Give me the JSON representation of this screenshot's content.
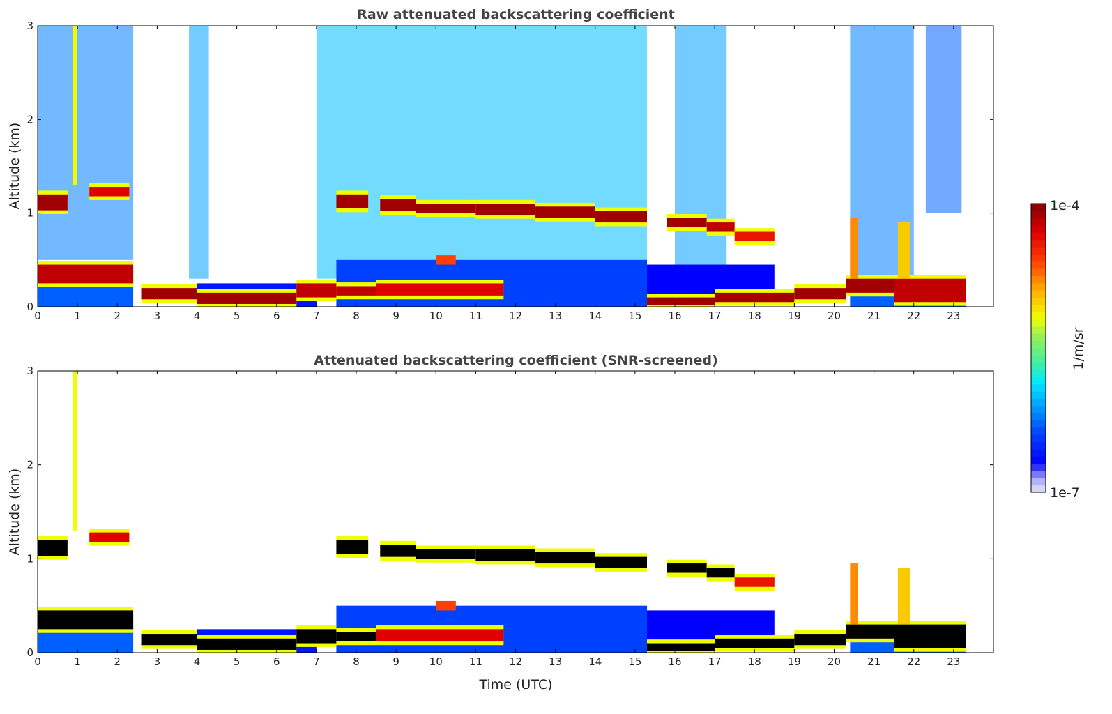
{
  "chart_data": [
    {
      "type": "heatmap",
      "id": "raw",
      "title": "Raw attenuated backscattering coefficient",
      "xlabel": "",
      "ylabel": "Altitude (km)",
      "xlim": [
        0,
        24
      ],
      "ylim": [
        0,
        3
      ],
      "xticks": [
        "0",
        "1",
        "2",
        "3",
        "4",
        "5",
        "6",
        "7",
        "8",
        "9",
        "10",
        "11",
        "12",
        "13",
        "14",
        "15",
        "16",
        "17",
        "18",
        "19",
        "20",
        "21",
        "22",
        "23"
      ],
      "yticks": [
        "0",
        "1",
        "2",
        "3"
      ],
      "show_low_snr": true
    },
    {
      "type": "heatmap",
      "id": "screened",
      "title": "Attenuated backscattering coefficient (SNR-screened)",
      "xlabel": "Time (UTC)",
      "ylabel": "Altitude (km)",
      "xlim": [
        0,
        24
      ],
      "ylim": [
        0,
        3
      ],
      "xticks": [
        "0",
        "1",
        "2",
        "3",
        "4",
        "5",
        "6",
        "7",
        "8",
        "9",
        "10",
        "11",
        "12",
        "13",
        "14",
        "15",
        "16",
        "17",
        "18",
        "19",
        "20",
        "21",
        "22",
        "23"
      ],
      "yticks": [
        "0",
        "1",
        "2",
        "3"
      ],
      "show_low_snr": false
    }
  ],
  "colorbar": {
    "label": "1/m/sr",
    "max_label": "1e-4",
    "min_label": "1e-7",
    "log_min": -7,
    "log_max": -4
  },
  "cells": [
    [
      0,
      2.4,
      0.5,
      3,
      -6.2,
      false
    ],
    [
      3.8,
      4.3,
      0.3,
      3,
      -6.1,
      false
    ],
    [
      7,
      15.3,
      0.3,
      3,
      -6.0,
      false
    ],
    [
      16,
      17.3,
      0.3,
      3,
      -6.1,
      false
    ],
    [
      20.4,
      22,
      0.3,
      3,
      -6.2,
      false
    ],
    [
      22.3,
      23.2,
      1.0,
      3,
      -6.3,
      false
    ],
    [
      0.88,
      0.98,
      1.3,
      3,
      -5.2,
      true
    ],
    [
      0,
      2.4,
      0,
      0.35,
      -6.3,
      true
    ],
    [
      4,
      7,
      0,
      0.25,
      -6.6,
      true
    ],
    [
      7.5,
      15.3,
      0,
      0.5,
      -6.4,
      true
    ],
    [
      15.3,
      18.5,
      0.1,
      0.45,
      -6.7,
      true
    ],
    [
      20.4,
      23.3,
      0,
      0.25,
      -6.3,
      true
    ],
    [
      0,
      0.75,
      1.03,
      1.2,
      -4.1,
      true
    ],
    [
      1.3,
      2.3,
      1.18,
      1.28,
      -4.3,
      true
    ],
    [
      7.5,
      8.3,
      1.05,
      1.2,
      -4.1,
      true
    ],
    [
      8.6,
      9.5,
      1.02,
      1.15,
      -4.1,
      true
    ],
    [
      9.5,
      11.0,
      1.0,
      1.1,
      -4.1,
      true
    ],
    [
      11.0,
      12.5,
      0.98,
      1.1,
      -4.1,
      true
    ],
    [
      12.5,
      14,
      0.95,
      1.07,
      -4.1,
      true
    ],
    [
      14,
      15.3,
      0.9,
      1.02,
      -4.1,
      true
    ],
    [
      15.8,
      16.8,
      0.85,
      0.95,
      -4.1,
      true
    ],
    [
      16.8,
      17.5,
      0.8,
      0.9,
      -4.2,
      true
    ],
    [
      17.5,
      18.5,
      0.7,
      0.8,
      -4.4,
      true
    ],
    [
      0,
      2.4,
      0.25,
      0.45,
      -4.2,
      true
    ],
    [
      2.6,
      4,
      0.08,
      0.2,
      -4.1,
      true
    ],
    [
      4,
      6.5,
      0.03,
      0.15,
      -4.1,
      true
    ],
    [
      6.5,
      7.5,
      0.1,
      0.25,
      -4.2,
      true
    ],
    [
      7.5,
      8.5,
      0.12,
      0.22,
      -4.2,
      true
    ],
    [
      8.5,
      11.7,
      0.12,
      0.25,
      -4.3,
      true
    ],
    [
      15.3,
      17,
      0.02,
      0.1,
      -4.1,
      true
    ],
    [
      17,
      19,
      0.05,
      0.15,
      -4.1,
      true
    ],
    [
      19,
      20.3,
      0.08,
      0.2,
      -4.1,
      true
    ],
    [
      20.3,
      21.5,
      0.15,
      0.3,
      -4.1,
      true
    ],
    [
      21.5,
      23.3,
      0.05,
      0.3,
      -4.2,
      true
    ],
    [
      21.6,
      21.9,
      0.3,
      0.9,
      -5.0,
      true
    ],
    [
      20.4,
      20.6,
      0.3,
      0.95,
      -4.8,
      true
    ],
    [
      10.0,
      10.5,
      0.45,
      0.55,
      -4.6,
      true
    ]
  ],
  "data_gap": [
    2.45,
    2.55
  ]
}
